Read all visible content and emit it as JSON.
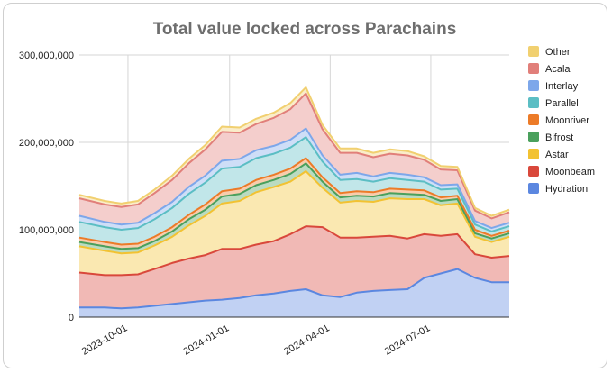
{
  "chart_data": {
    "type": "area",
    "stacked": true,
    "title": "Total value locked across Parachains",
    "xlabel": "",
    "ylabel": "",
    "ylim": [
      0,
      300000000
    ],
    "yticks": [
      "0",
      "100,000,000",
      "200,000,000",
      "300,000,000"
    ],
    "x_range": [
      "2023-08-18",
      "2024-09-10"
    ],
    "xticks": [
      "2023-10-01",
      "2024-01-01",
      "2024-04-01",
      "2024-07-01"
    ],
    "grid": true,
    "legend": "right",
    "x": [
      "2023-08-18",
      "2023-09-10",
      "2023-09-25",
      "2023-10-10",
      "2023-10-25",
      "2023-11-10",
      "2023-11-25",
      "2023-12-10",
      "2023-12-25",
      "2024-01-10",
      "2024-01-25",
      "2024-02-10",
      "2024-02-25",
      "2024-03-10",
      "2024-03-25",
      "2024-04-10",
      "2024-04-25",
      "2024-05-10",
      "2024-05-25",
      "2024-06-10",
      "2024-06-25",
      "2024-07-10",
      "2024-07-25",
      "2024-08-10",
      "2024-08-25",
      "2024-09-10"
    ],
    "series": [
      {
        "name": "Hydration",
        "color": "#5b87e0",
        "values": [
          11000000,
          11000000,
          10000000,
          11000000,
          13000000,
          15000000,
          17000000,
          19000000,
          20000000,
          22000000,
          25000000,
          27000000,
          30000000,
          32000000,
          25000000,
          23000000,
          28000000,
          30000000,
          31000000,
          32000000,
          45000000,
          50000000,
          55000000,
          45000000,
          40000000,
          40000000
        ]
      },
      {
        "name": "Moonbeam",
        "color": "#d9483b",
        "values": [
          40000000,
          37000000,
          38000000,
          38000000,
          42000000,
          47000000,
          50000000,
          52000000,
          58000000,
          56000000,
          58000000,
          60000000,
          65000000,
          72000000,
          78000000,
          68000000,
          63000000,
          62000000,
          62000000,
          58000000,
          50000000,
          43000000,
          40000000,
          27000000,
          28000000,
          30000000
        ]
      },
      {
        "name": "Astar",
        "color": "#f2c232",
        "values": [
          30000000,
          28000000,
          25000000,
          25000000,
          27000000,
          30000000,
          38000000,
          45000000,
          52000000,
          55000000,
          60000000,
          62000000,
          60000000,
          63000000,
          45000000,
          40000000,
          42000000,
          40000000,
          43000000,
          45000000,
          40000000,
          35000000,
          35000000,
          20000000,
          18000000,
          22000000
        ]
      },
      {
        "name": "Bifrost",
        "color": "#4aa05c",
        "values": [
          5000000,
          5000000,
          5000000,
          5000000,
          5000000,
          6000000,
          7000000,
          7000000,
          8000000,
          8000000,
          8000000,
          8000000,
          9000000,
          9000000,
          7000000,
          6000000,
          6000000,
          6000000,
          6000000,
          6000000,
          5000000,
          5000000,
          5000000,
          4000000,
          4000000,
          4000000
        ]
      },
      {
        "name": "Moonriver",
        "color": "#ec7b28",
        "values": [
          5000000,
          5000000,
          5000000,
          5000000,
          5000000,
          5000000,
          5000000,
          6000000,
          6000000,
          6000000,
          6000000,
          6000000,
          6000000,
          6000000,
          5000000,
          5000000,
          5000000,
          5000000,
          5000000,
          5000000,
          5000000,
          4000000,
          4000000,
          4000000,
          3000000,
          3000000
        ]
      },
      {
        "name": "Parallel",
        "color": "#5bbec4",
        "values": [
          18000000,
          17000000,
          17000000,
          18000000,
          20000000,
          22000000,
          24000000,
          25000000,
          26000000,
          25000000,
          25000000,
          24000000,
          24000000,
          24000000,
          18000000,
          15000000,
          14000000,
          12000000,
          12000000,
          11000000,
          10000000,
          9000000,
          8000000,
          6000000,
          5000000,
          5000000
        ]
      },
      {
        "name": "Interlay",
        "color": "#7da7ea",
        "values": [
          7000000,
          6000000,
          6000000,
          6000000,
          7000000,
          7000000,
          8000000,
          8000000,
          9000000,
          9000000,
          9000000,
          9000000,
          9000000,
          10000000,
          7000000,
          6000000,
          7000000,
          6000000,
          6000000,
          6000000,
          5000000,
          5000000,
          5000000,
          4000000,
          4000000,
          4000000
        ]
      },
      {
        "name": "Acala",
        "color": "#e17f7a",
        "values": [
          20000000,
          20000000,
          20000000,
          21000000,
          23000000,
          25000000,
          27000000,
          30000000,
          33000000,
          30000000,
          30000000,
          32000000,
          35000000,
          40000000,
          30000000,
          25000000,
          23000000,
          22000000,
          22000000,
          22000000,
          20000000,
          18000000,
          16000000,
          12000000,
          11000000,
          12000000
        ]
      },
      {
        "name": "Other",
        "color": "#f1d070",
        "values": [
          4000000,
          4000000,
          4000000,
          4000000,
          4000000,
          5000000,
          5000000,
          5000000,
          6000000,
          6000000,
          6000000,
          6000000,
          7000000,
          7000000,
          5000000,
          5000000,
          5000000,
          5000000,
          5000000,
          5000000,
          4000000,
          4000000,
          4000000,
          3000000,
          3000000,
          3000000
        ]
      }
    ]
  }
}
